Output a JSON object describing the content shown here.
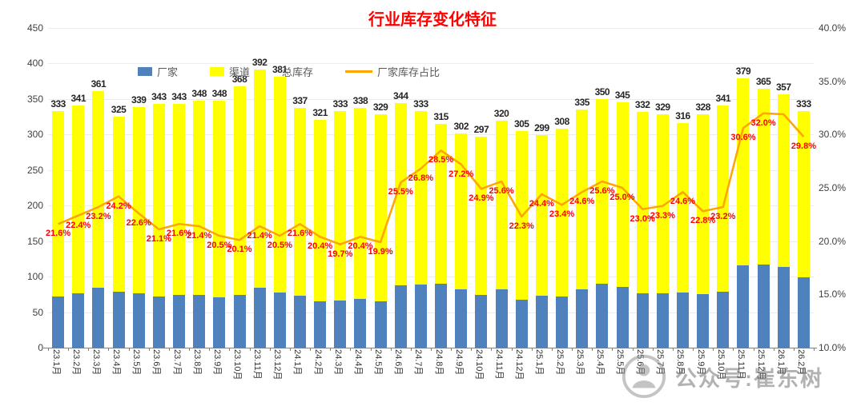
{
  "title": "行业库存变化特征",
  "legend": {
    "factory": "厂家",
    "channel": "渠道",
    "total": "总库存",
    "ratio": "厂家库存占比"
  },
  "colors": {
    "title": "#ff0000",
    "factory": "#4f81bd",
    "channel": "#ffff00",
    "ratio": "#ffa500",
    "pct_label": "#ff0000",
    "total_label": "#262626"
  },
  "watermark": {
    "text": "公众号:崔东树"
  },
  "chart_data": {
    "type": "bar",
    "subtype": "stacked-bars-with-line",
    "title": "行业库存变化特征",
    "categories": [
      "23.1月",
      "23.2月",
      "23.3月",
      "23.4月",
      "23.5月",
      "23.6月",
      "23.7月",
      "23.8月",
      "23.9月",
      "23.10月",
      "23.11月",
      "23.12月",
      "24.1月",
      "24.2月",
      "24.3月",
      "24.4月",
      "24.5月",
      "24.6月",
      "24.7月",
      "24.8月",
      "24.9月",
      "24.10月",
      "24.11月",
      "24.12月",
      "25.1月",
      "25.2月",
      "25.3月",
      "25.4月",
      "25.5月",
      "25.6月",
      "25.7月",
      "25.8月",
      "25.9月",
      "25.10月",
      "25.11月",
      "25.12月",
      "26.1月",
      "26.2月"
    ],
    "series": [
      {
        "name": "厂家",
        "type": "bar",
        "stack": "inventory",
        "axis": "left",
        "color": "#4f81bd",
        "values": [
          72,
          76,
          84,
          79,
          77,
          72,
          74,
          74,
          71,
          74,
          84,
          78,
          73,
          65,
          66,
          69,
          65,
          88,
          89,
          90,
          82,
          74,
          82,
          68,
          73,
          72,
          82,
          90,
          86,
          76,
          77,
          78,
          75,
          79,
          116,
          117,
          114,
          99
        ]
      },
      {
        "name": "渠道",
        "type": "bar",
        "stack": "inventory",
        "axis": "left",
        "color": "#ffff00",
        "values": [
          261,
          265,
          277,
          246,
          262,
          271,
          269,
          274,
          277,
          294,
          308,
          303,
          264,
          256,
          267,
          269,
          264,
          256,
          244,
          225,
          220,
          223,
          238,
          237,
          226,
          236,
          253,
          260,
          259,
          256,
          252,
          238,
          253,
          262,
          263,
          248,
          243,
          234
        ]
      },
      {
        "name": "总库存",
        "type": "label",
        "axis": "left",
        "values": [
          333,
          341,
          361,
          325,
          339,
          343,
          343,
          348,
          348,
          368,
          392,
          381,
          337,
          321,
          333,
          338,
          329,
          344,
          333,
          315,
          302,
          297,
          320,
          305,
          299,
          308,
          335,
          350,
          345,
          332,
          329,
          316,
          328,
          341,
          379,
          365,
          357,
          333
        ]
      },
      {
        "name": "厂家库存占比",
        "type": "line",
        "axis": "right",
        "color": "#ffa500",
        "values": [
          21.6,
          22.4,
          23.2,
          24.2,
          22.6,
          21.1,
          21.6,
          21.4,
          20.5,
          20.1,
          21.4,
          20.5,
          21.6,
          20.4,
          19.7,
          20.4,
          19.9,
          25.5,
          26.8,
          28.5,
          27.2,
          24.9,
          25.6,
          22.3,
          24.4,
          23.4,
          24.6,
          25.6,
          25.0,
          23.0,
          23.3,
          24.6,
          22.8,
          23.2,
          30.6,
          32.0,
          31.9,
          29.8
        ],
        "labels": [
          "21.6%",
          "22.4%",
          "23.2%",
          "24.2%",
          "22.6%",
          "21.1%",
          "21.6%",
          "21.4%",
          "20.5%",
          "20.1%",
          "21.4%",
          "20.5%",
          "21.6%",
          "20.4%",
          "19.7%",
          "20.4%",
          "19.9%",
          "25.5%",
          "26.8%",
          "28.5%",
          "27.2%",
          "24.9%",
          "25.6%",
          "22.3%",
          "24.4%",
          "23.4%",
          "24.6%",
          "25.6%",
          "25.0%",
          "23.0%",
          "23.3%",
          "24.6%",
          "22.8%",
          "23.2%",
          "30.6%",
          "32.0%",
          "",
          "29.8%"
        ]
      }
    ],
    "ylim": [
      0,
      450
    ],
    "yticks": [
      0,
      50,
      100,
      150,
      200,
      250,
      300,
      350,
      400,
      450
    ],
    "y2lim": [
      10,
      40
    ],
    "y2ticks": [
      "10.0%",
      "15.0%",
      "20.0%",
      "25.0%",
      "30.0%",
      "35.0%",
      "40.0%"
    ],
    "grid": true,
    "legend_position": "top-inside"
  }
}
